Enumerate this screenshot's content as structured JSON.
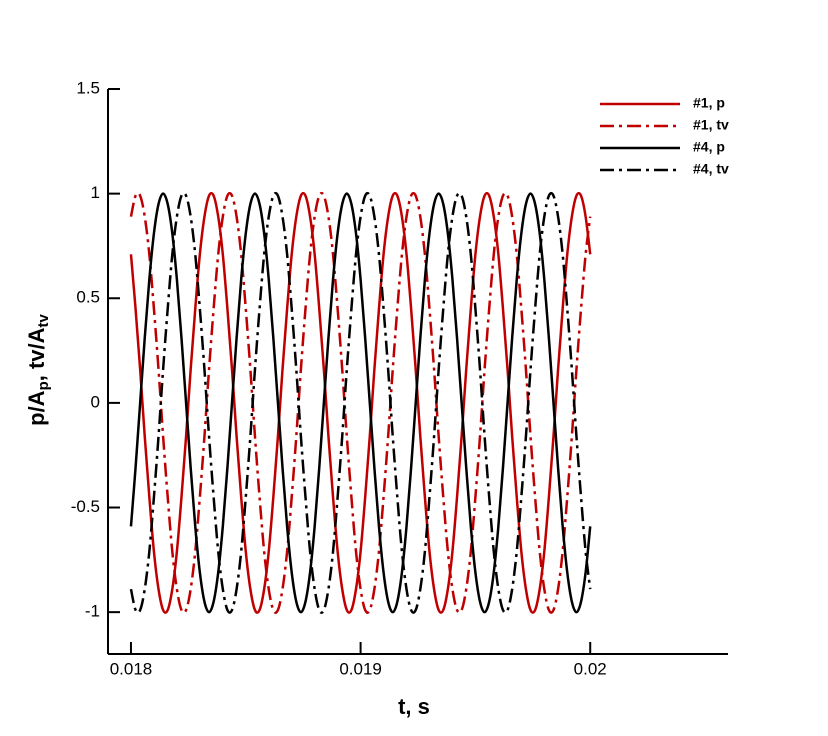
{
  "chart_data": {
    "type": "line",
    "xlabel": "t, s",
    "ylabel": [
      "p/A",
      "p",
      ", tv/A",
      "tv"
    ],
    "xlim": [
      0.0179,
      0.0206
    ],
    "xticks": [
      0.018,
      0.019,
      0.02
    ],
    "ylim": [
      -1.2,
      1.5
    ],
    "yticks": [
      1.5,
      1,
      0.5,
      0,
      -0.5,
      -1
    ],
    "legend": "top-right",
    "x": [
      0.018,
      0.01802,
      0.01804,
      0.01806,
      0.01808,
      0.0181,
      0.01812,
      0.01814,
      0.01816,
      0.01818,
      0.0182,
      0.01822,
      0.01824,
      0.01826,
      0.01828,
      0.0183,
      0.01832,
      0.01834,
      0.01836,
      0.01838,
      0.0184,
      0.01842,
      0.01844,
      0.01846,
      0.01848,
      0.0185,
      0.01852,
      0.01854,
      0.01856,
      0.01858,
      0.0186,
      0.01862,
      0.01864,
      0.01866,
      0.01868,
      0.0187,
      0.01872,
      0.01874,
      0.01876,
      0.01878,
      0.0188,
      0.01882,
      0.01884,
      0.01886,
      0.01888,
      0.0189,
      0.01892,
      0.01894,
      0.01896,
      0.01898,
      0.019,
      0.01902,
      0.01904,
      0.01906,
      0.01908,
      0.0191,
      0.01912,
      0.01914,
      0.01916,
      0.01918,
      0.0192,
      0.01922,
      0.01924,
      0.01926,
      0.01928,
      0.0193,
      0.01932,
      0.01934,
      0.01936,
      0.01938,
      0.0194,
      0.01942,
      0.01944,
      0.01946,
      0.01948,
      0.0195,
      0.01952,
      0.01954,
      0.01956,
      0.01958,
      0.0196,
      0.01962,
      0.01964,
      0.01966,
      0.01968,
      0.0197,
      0.01972,
      0.01974,
      0.01976,
      0.01978,
      0.0198,
      0.01982,
      0.01984,
      0.01986,
      0.01988,
      0.0199,
      0.01992,
      0.01994,
      0.01996,
      0.01998,
      0.02
    ],
    "series": [
      {
        "name": "#1, p",
        "color": "#c00000",
        "dash": "solid",
        "values": [
          0.71,
          0.45,
          0.16,
          -0.16,
          -0.45,
          -0.71,
          -0.89,
          -0.99,
          -0.99,
          -0.89,
          -0.71,
          -0.45,
          -0.16,
          0.16,
          0.45,
          0.71,
          0.89,
          0.99,
          0.99,
          0.89,
          0.71,
          0.45,
          0.16,
          -0.16,
          -0.45,
          -0.71,
          -0.89,
          -0.99,
          -0.99,
          -0.89,
          -0.71,
          -0.45,
          -0.16,
          0.16,
          0.45,
          0.71,
          0.89,
          0.99,
          0.99,
          0.89,
          0.71,
          0.45,
          0.16,
          -0.16,
          -0.45,
          -0.71,
          -0.89,
          -0.99,
          -0.99,
          -0.89,
          -0.71,
          -0.45,
          -0.16,
          0.16,
          0.45,
          0.71,
          0.89,
          0.99,
          0.99,
          0.89,
          0.71,
          0.45,
          0.16,
          -0.16,
          -0.45,
          -0.71,
          -0.89,
          -0.99,
          -0.99,
          -0.89,
          -0.71,
          -0.45,
          -0.16,
          0.16,
          0.45,
          0.71,
          0.89,
          0.99,
          0.99,
          0.89,
          0.71,
          0.45,
          0.16,
          -0.16,
          -0.45,
          -0.71,
          -0.89,
          -0.99,
          -0.99,
          -0.89,
          -0.71,
          -0.45,
          -0.16,
          0.16,
          0.45,
          0.71,
          0.89,
          0.99,
          0.99,
          0.89,
          0.71
        ]
      },
      {
        "name": "#1, tv",
        "color": "#c00000",
        "dash": "dashdot",
        "values": [
          0.89,
          0.99,
          0.99,
          0.89,
          0.71,
          0.45,
          0.16,
          -0.16,
          -0.45,
          -0.71,
          -0.89,
          -0.99,
          -0.99,
          -0.89,
          -0.71,
          -0.45,
          -0.16,
          0.16,
          0.45,
          0.71,
          0.89,
          0.99,
          0.99,
          0.89,
          0.71,
          0.45,
          0.16,
          -0.16,
          -0.45,
          -0.71,
          -0.89,
          -0.99,
          -0.99,
          -0.89,
          -0.71,
          -0.45,
          -0.16,
          0.16,
          0.45,
          0.71,
          0.89,
          0.99,
          0.99,
          0.89,
          0.71,
          0.45,
          0.16,
          -0.16,
          -0.45,
          -0.71,
          -0.89,
          -0.99,
          -0.99,
          -0.89,
          -0.71,
          -0.45,
          -0.16,
          0.16,
          0.45,
          0.71,
          0.89,
          0.99,
          0.99,
          0.89,
          0.71,
          0.45,
          0.16,
          -0.16,
          -0.45,
          -0.71,
          -0.89,
          -0.99,
          -0.99,
          -0.89,
          -0.71,
          -0.45,
          -0.16,
          0.16,
          0.45,
          0.71,
          0.89,
          0.99,
          0.99,
          0.89,
          0.71,
          0.45,
          0.16,
          -0.16,
          -0.45,
          -0.71,
          -0.89,
          -0.99,
          -0.99,
          -0.89,
          -0.71,
          -0.45,
          -0.16,
          0.16,
          0.45,
          0.71,
          0.89
        ]
      },
      {
        "name": "#4, p",
        "color": "#000000",
        "dash": "solid",
        "values": [
          -0.59,
          -0.31,
          0,
          0.31,
          0.59,
          0.81,
          0.95,
          1,
          0.95,
          0.81,
          0.59,
          0.31,
          0,
          -0.31,
          -0.59,
          -0.81,
          -0.95,
          -1,
          -0.95,
          -0.81,
          -0.59,
          -0.31,
          0,
          0.31,
          0.59,
          0.81,
          0.95,
          1,
          0.95,
          0.81,
          0.59,
          0.31,
          0,
          -0.31,
          -0.59,
          -0.81,
          -0.95,
          -1,
          -0.95,
          -0.81,
          -0.59,
          -0.31,
          0,
          0.31,
          0.59,
          0.81,
          0.95,
          1,
          0.95,
          0.81,
          0.59,
          0.31,
          0,
          -0.31,
          -0.59,
          -0.81,
          -0.95,
          -1,
          -0.95,
          -0.81,
          -0.59,
          -0.31,
          0,
          0.31,
          0.59,
          0.81,
          0.95,
          1,
          0.95,
          0.81,
          0.59,
          0.31,
          0,
          -0.31,
          -0.59,
          -0.81,
          -0.95,
          -1,
          -0.95,
          -0.81,
          -0.59,
          -0.31,
          0,
          0.31,
          0.59,
          0.81,
          0.95,
          1,
          0.95,
          0.81,
          0.59,
          0.31,
          0,
          -0.31,
          -0.59,
          -0.81,
          -0.95,
          -1,
          -0.95,
          -0.81,
          -0.59
        ]
      },
      {
        "name": "#4, tv",
        "color": "#000000",
        "dash": "dashdot",
        "values": [
          -0.89,
          -0.99,
          -0.99,
          -0.89,
          -0.71,
          -0.45,
          -0.16,
          0.16,
          0.45,
          0.71,
          0.89,
          0.99,
          0.99,
          0.89,
          0.71,
          0.45,
          0.16,
          -0.16,
          -0.45,
          -0.71,
          -0.89,
          -0.99,
          -0.99,
          -0.89,
          -0.71,
          -0.45,
          -0.16,
          0.16,
          0.45,
          0.71,
          0.89,
          0.99,
          0.99,
          0.89,
          0.71,
          0.45,
          0.16,
          -0.16,
          -0.45,
          -0.71,
          -0.89,
          -0.99,
          -0.99,
          -0.89,
          -0.71,
          -0.45,
          -0.16,
          0.16,
          0.45,
          0.71,
          0.89,
          0.99,
          0.99,
          0.89,
          0.71,
          0.45,
          0.16,
          -0.16,
          -0.45,
          -0.71,
          -0.89,
          -0.99,
          -0.99,
          -0.89,
          -0.71,
          -0.45,
          -0.16,
          0.16,
          0.45,
          0.71,
          0.89,
          0.99,
          0.99,
          0.89,
          0.71,
          0.45,
          0.16,
          -0.16,
          -0.45,
          -0.71,
          -0.89,
          -0.99,
          -0.99,
          -0.89,
          -0.71,
          -0.45,
          -0.16,
          0.16,
          0.45,
          0.71,
          0.89,
          0.99,
          0.99,
          0.89,
          0.71,
          0.45,
          0.16,
          -0.16,
          -0.45,
          -0.71,
          -0.89
        ]
      }
    ]
  }
}
